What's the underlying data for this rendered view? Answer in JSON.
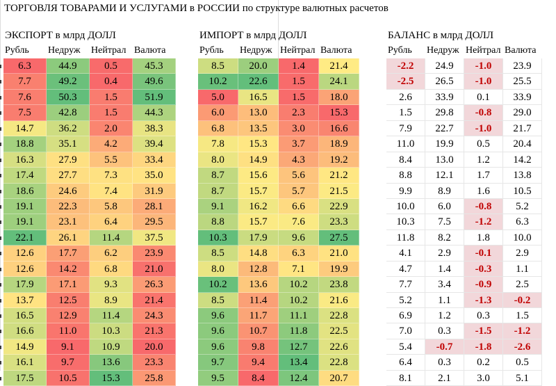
{
  "title": "ТОРГОВЛЯ ТОВАРАМИ И УСЛУГАМИ в РОССИИ по структуре валютных расчетов",
  "columns": [
    "Рубль",
    "Недруж",
    "Нейтрал",
    "Валюта"
  ],
  "export": {
    "title": "ЭКСПОРТ в млрд ДОЛЛ",
    "rows": [
      [
        "6.3",
        "44.9",
        "0.5",
        "45.3"
      ],
      [
        "7.7",
        "49.2",
        "0.4",
        "49.6"
      ],
      [
        "7.6",
        "50.3",
        "1.5",
        "51.9"
      ],
      [
        "7.5",
        "42.8",
        "1.5",
        "44.3"
      ],
      [
        "14.7",
        "36.2",
        "2.0",
        "38.3"
      ],
      [
        "18.8",
        "35.1",
        "4.2",
        "39.4"
      ],
      [
        "16.3",
        "27.9",
        "5.5",
        "33.4"
      ],
      [
        "17.4",
        "27.7",
        "7.3",
        "35.0"
      ],
      [
        "18.6",
        "24.6",
        "7.4",
        "31.9"
      ],
      [
        "19.1",
        "22.3",
        "5.8",
        "28.1"
      ],
      [
        "19.1",
        "23.1",
        "6.4",
        "29.5"
      ],
      [
        "22.1",
        "26.1",
        "11.4",
        "37.5"
      ],
      [
        "12.6",
        "17.7",
        "6.2",
        "23.9"
      ],
      [
        "12.6",
        "14.2",
        "6.8",
        "21.0"
      ],
      [
        "17.9",
        "17.1",
        "9.3",
        "26.3"
      ],
      [
        "13.7",
        "12.5",
        "8.9",
        "21.4"
      ],
      [
        "16.5",
        "12.9",
        "11.4",
        "24.3"
      ],
      [
        "16.6",
        "11.0",
        "10.3",
        "21.3"
      ],
      [
        "14.9",
        "9.1",
        "10.9",
        "20.0"
      ],
      [
        "16.1",
        "9.7",
        "13.6",
        "23.3"
      ],
      [
        "17.5",
        "10.5",
        "15.3",
        "25.8"
      ]
    ]
  },
  "import": {
    "title": "ИМПОРТ в млрд ДОЛЛ",
    "rows": [
      [
        "8.5",
        "20.0",
        "1.4",
        "21.4"
      ],
      [
        "10.2",
        "22.6",
        "1.5",
        "24.1"
      ],
      [
        "5.0",
        "16.5",
        "1.5",
        "18.0"
      ],
      [
        "6.0",
        "13.0",
        "2.3",
        "15.3"
      ],
      [
        "6.8",
        "13.5",
        "3.0",
        "16.6"
      ],
      [
        "7.8",
        "15.3",
        "3.7",
        "18.9"
      ],
      [
        "8.0",
        "14.9",
        "4.3",
        "19.2"
      ],
      [
        "8.7",
        "15.6",
        "5.6",
        "21.2"
      ],
      [
        "8.7",
        "15.7",
        "5.7",
        "21.5"
      ],
      [
        "9.1",
        "16.2",
        "6.6",
        "22.9"
      ],
      [
        "8.8",
        "15.7",
        "7.6",
        "23.3"
      ],
      [
        "10.3",
        "17.9",
        "9.6",
        "27.5"
      ],
      [
        "8.5",
        "14.8",
        "6.3",
        "21.0"
      ],
      [
        "8.0",
        "12.8",
        "7.1",
        "19.9"
      ],
      [
        "10.2",
        "13.6",
        "10.2",
        "23.8"
      ],
      [
        "8.5",
        "11.4",
        "10.2",
        "21.6"
      ],
      [
        "9.6",
        "11.7",
        "11.1",
        "22.8"
      ],
      [
        "9.6",
        "10.7",
        "11.8",
        "22.5"
      ],
      [
        "9.6",
        "9.8",
        "12.7",
        "22.6"
      ],
      [
        "9.7",
        "9.4",
        "13.4",
        "22.8"
      ],
      [
        "9.5",
        "8.4",
        "12.4",
        "20.7"
      ]
    ]
  },
  "balance": {
    "title": "БАЛАНС в млрд ДОЛЛ",
    "rows": [
      [
        "-2.2",
        "24.9",
        "-1.0",
        "23.9"
      ],
      [
        "-2.5",
        "26.5",
        "-1.0",
        "25.5"
      ],
      [
        "2.6",
        "33.9",
        "0.1",
        "33.9"
      ],
      [
        "1.5",
        "29.8",
        "-0.8",
        "29.0"
      ],
      [
        "7.9",
        "22.7",
        "-1.0",
        "21.7"
      ],
      [
        "11.0",
        "19.9",
        "0.5",
        "20.4"
      ],
      [
        "8.4",
        "13.0",
        "1.2",
        "14.2"
      ],
      [
        "8.8",
        "12.1",
        "1.7",
        "13.8"
      ],
      [
        "9.9",
        "8.9",
        "1.6",
        "10.5"
      ],
      [
        "10.0",
        "6.0",
        "-0.8",
        "5.2"
      ],
      [
        "10.3",
        "7.5",
        "-1.2",
        "6.3"
      ],
      [
        "11.8",
        "8.2",
        "1.8",
        "10.0"
      ],
      [
        "4.1",
        "2.9",
        "-0.1",
        "2.9"
      ],
      [
        "4.7",
        "1.4",
        "-0.3",
        "1.1"
      ],
      [
        "7.7",
        "3.4",
        "-0.9",
        "2.5"
      ],
      [
        "5.2",
        "1.1",
        "-1.3",
        "-0.2"
      ],
      [
        "6.9",
        "1.2",
        "0.3",
        "1.5"
      ],
      [
        "7.0",
        "0.3",
        "-1.5",
        "-1.2"
      ],
      [
        "5.4",
        "-0.7",
        "-1.8",
        "-2.6"
      ],
      [
        "6.4",
        "0.3",
        "0.2",
        "0.5"
      ],
      [
        "8.1",
        "2.1",
        "3.0",
        "5.1"
      ]
    ]
  },
  "colors": {
    "low": "#f8696b",
    "mid": "#ffeb84",
    "high": "#63be7b",
    "negative_fill": "#f2d7da",
    "negative_text": "#c00000"
  }
}
